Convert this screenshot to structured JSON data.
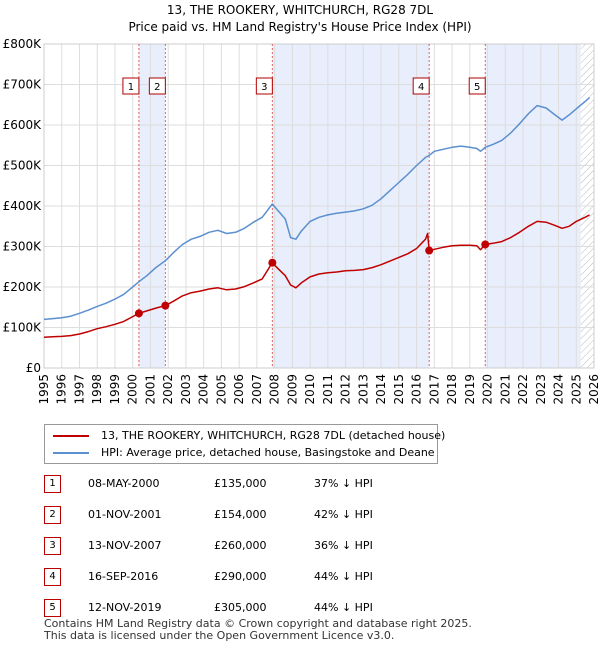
{
  "title_line1": "13, THE ROOKERY, WHITCHURCH, RG28 7DL",
  "title_line2": "Price paid vs. HM Land Registry's House Price Index (HPI)",
  "chart_data": {
    "type": "line",
    "xlim": [
      1995,
      2026
    ],
    "ylim": [
      0,
      800000
    ],
    "y_ticks": [
      {
        "value": 0,
        "label": "£0"
      },
      {
        "value": 100000,
        "label": "£100K"
      },
      {
        "value": 200000,
        "label": "£200K"
      },
      {
        "value": 300000,
        "label": "£300K"
      },
      {
        "value": 400000,
        "label": "£400K"
      },
      {
        "value": 500000,
        "label": "£500K"
      },
      {
        "value": 600000,
        "label": "£600K"
      },
      {
        "value": 700000,
        "label": "£700K"
      },
      {
        "value": 800000,
        "label": "£800K"
      }
    ],
    "x_ticks": [
      "1995",
      "1996",
      "1997",
      "1998",
      "1999",
      "2000",
      "2001",
      "2002",
      "2003",
      "2004",
      "2005",
      "2006",
      "2007",
      "2008",
      "2009",
      "2010",
      "2011",
      "2012",
      "2013",
      "2014",
      "2015",
      "2016",
      "2017",
      "2018",
      "2019",
      "2020",
      "2021",
      "2022",
      "2023",
      "2024",
      "2025",
      "2026"
    ],
    "grid": true,
    "shaded_ranges": [
      [
        2000.35,
        2001.84
      ],
      [
        2007.87,
        2016.71
      ],
      [
        2019.87,
        2025.25
      ]
    ],
    "forecast_start": 2025.25,
    "colors": {
      "property": "#c00000",
      "hpi": "#5b8fd0",
      "shade": "#e8eefb",
      "sale_line": "#e06060",
      "grid": "#dddddd"
    },
    "series": [
      {
        "name": "13, THE ROOKERY, WHITCHURCH, RG28 7DL (detached house)",
        "color": "#c00000",
        "points": [
          [
            1995.0,
            76000
          ],
          [
            1995.5,
            77000
          ],
          [
            1996.0,
            78000
          ],
          [
            1996.5,
            80000
          ],
          [
            1997.0,
            84000
          ],
          [
            1997.5,
            90000
          ],
          [
            1998.0,
            97000
          ],
          [
            1998.5,
            102000
          ],
          [
            1999.0,
            108000
          ],
          [
            1999.5,
            115000
          ],
          [
            2000.0,
            127000
          ],
          [
            2000.35,
            135000
          ],
          [
            2000.8,
            141000
          ],
          [
            2001.3,
            148000
          ],
          [
            2001.84,
            154000
          ],
          [
            2002.3,
            165000
          ],
          [
            2002.8,
            178000
          ],
          [
            2003.3,
            186000
          ],
          [
            2003.8,
            190000
          ],
          [
            2004.3,
            195000
          ],
          [
            2004.8,
            198000
          ],
          [
            2005.3,
            193000
          ],
          [
            2005.8,
            195000
          ],
          [
            2006.3,
            201000
          ],
          [
            2006.8,
            210000
          ],
          [
            2007.3,
            220000
          ],
          [
            2007.87,
            260000
          ],
          [
            2008.2,
            245000
          ],
          [
            2008.6,
            228000
          ],
          [
            2008.9,
            205000
          ],
          [
            2009.2,
            198000
          ],
          [
            2009.5,
            210000
          ],
          [
            2010.0,
            225000
          ],
          [
            2010.5,
            232000
          ],
          [
            2011.0,
            235000
          ],
          [
            2011.5,
            237000
          ],
          [
            2012.0,
            240000
          ],
          [
            2012.5,
            241000
          ],
          [
            2013.0,
            243000
          ],
          [
            2013.5,
            248000
          ],
          [
            2014.0,
            255000
          ],
          [
            2014.5,
            264000
          ],
          [
            2015.0,
            273000
          ],
          [
            2015.5,
            282000
          ],
          [
            2016.0,
            295000
          ],
          [
            2016.5,
            318000
          ],
          [
            2016.62,
            332000
          ],
          [
            2016.71,
            290000
          ],
          [
            2017.0,
            293000
          ],
          [
            2017.5,
            298000
          ],
          [
            2018.0,
            302000
          ],
          [
            2018.5,
            303000
          ],
          [
            2019.0,
            303000
          ],
          [
            2019.4,
            302000
          ],
          [
            2019.6,
            292000
          ],
          [
            2019.87,
            305000
          ],
          [
            2020.3,
            308000
          ],
          [
            2020.8,
            312000
          ],
          [
            2021.3,
            322000
          ],
          [
            2021.8,
            335000
          ],
          [
            2022.3,
            350000
          ],
          [
            2022.8,
            362000
          ],
          [
            2023.3,
            360000
          ],
          [
            2023.8,
            352000
          ],
          [
            2024.2,
            345000
          ],
          [
            2024.6,
            350000
          ],
          [
            2025.0,
            362000
          ],
          [
            2025.5,
            372000
          ],
          [
            2025.75,
            378000
          ]
        ]
      },
      {
        "name": "HPI: Average price, detached house, Basingstoke and Deane",
        "color": "#5b8fd0",
        "points": [
          [
            1995.0,
            120000
          ],
          [
            1995.5,
            122000
          ],
          [
            1996.0,
            124000
          ],
          [
            1996.5,
            128000
          ],
          [
            1997.0,
            135000
          ],
          [
            1997.5,
            143000
          ],
          [
            1998.0,
            152000
          ],
          [
            1998.5,
            160000
          ],
          [
            1999.0,
            170000
          ],
          [
            1999.5,
            182000
          ],
          [
            2000.0,
            200000
          ],
          [
            2000.35,
            213000
          ],
          [
            2000.8,
            228000
          ],
          [
            2001.3,
            248000
          ],
          [
            2001.84,
            265000
          ],
          [
            2002.3,
            285000
          ],
          [
            2002.8,
            305000
          ],
          [
            2003.3,
            318000
          ],
          [
            2003.8,
            325000
          ],
          [
            2004.3,
            335000
          ],
          [
            2004.8,
            340000
          ],
          [
            2005.3,
            332000
          ],
          [
            2005.8,
            335000
          ],
          [
            2006.3,
            345000
          ],
          [
            2006.8,
            360000
          ],
          [
            2007.3,
            372000
          ],
          [
            2007.87,
            405000
          ],
          [
            2008.2,
            388000
          ],
          [
            2008.6,
            368000
          ],
          [
            2008.9,
            322000
          ],
          [
            2009.2,
            318000
          ],
          [
            2009.5,
            338000
          ],
          [
            2010.0,
            362000
          ],
          [
            2010.5,
            372000
          ],
          [
            2011.0,
            378000
          ],
          [
            2011.5,
            382000
          ],
          [
            2012.0,
            385000
          ],
          [
            2012.5,
            388000
          ],
          [
            2013.0,
            393000
          ],
          [
            2013.5,
            402000
          ],
          [
            2014.0,
            418000
          ],
          [
            2014.5,
            438000
          ],
          [
            2015.0,
            458000
          ],
          [
            2015.5,
            478000
          ],
          [
            2016.0,
            500000
          ],
          [
            2016.5,
            520000
          ],
          [
            2016.71,
            525000
          ],
          [
            2017.0,
            535000
          ],
          [
            2017.5,
            540000
          ],
          [
            2018.0,
            545000
          ],
          [
            2018.5,
            548000
          ],
          [
            2019.0,
            545000
          ],
          [
            2019.4,
            542000
          ],
          [
            2019.6,
            535000
          ],
          [
            2019.87,
            545000
          ],
          [
            2020.3,
            552000
          ],
          [
            2020.8,
            562000
          ],
          [
            2021.3,
            580000
          ],
          [
            2021.8,
            603000
          ],
          [
            2022.3,
            628000
          ],
          [
            2022.8,
            648000
          ],
          [
            2023.3,
            642000
          ],
          [
            2023.8,
            625000
          ],
          [
            2024.2,
            612000
          ],
          [
            2024.6,
            625000
          ],
          [
            2025.0,
            640000
          ],
          [
            2025.5,
            658000
          ],
          [
            2025.75,
            668000
          ]
        ]
      }
    ],
    "sales": [
      {
        "label": "1",
        "x": 2000.35,
        "value": 135000
      },
      {
        "label": "2",
        "x": 2001.84,
        "value": 154000
      },
      {
        "label": "3",
        "x": 2007.87,
        "value": 260000
      },
      {
        "label": "4",
        "x": 2016.71,
        "value": 290000
      },
      {
        "label": "5",
        "x": 2019.87,
        "value": 305000
      }
    ]
  },
  "legend": {
    "property": "13, THE ROOKERY, WHITCHURCH, RG28 7DL (detached house)",
    "hpi": "HPI: Average price, detached house, Basingstoke and Deane"
  },
  "sales_table": [
    {
      "num": "1",
      "date": "08-MAY-2000",
      "price": "£135,000",
      "hpi": "37% ↓ HPI"
    },
    {
      "num": "2",
      "date": "01-NOV-2001",
      "price": "£154,000",
      "hpi": "42% ↓ HPI"
    },
    {
      "num": "3",
      "date": "13-NOV-2007",
      "price": "£260,000",
      "hpi": "36% ↓ HPI"
    },
    {
      "num": "4",
      "date": "16-SEP-2016",
      "price": "£290,000",
      "hpi": "44% ↓ HPI"
    },
    {
      "num": "5",
      "date": "12-NOV-2019",
      "price": "£305,000",
      "hpi": "44% ↓ HPI"
    }
  ],
  "footer": {
    "line1": "Contains HM Land Registry data © Crown copyright and database right 2025.",
    "line2": "This data is licensed under the Open Government Licence v3.0."
  }
}
